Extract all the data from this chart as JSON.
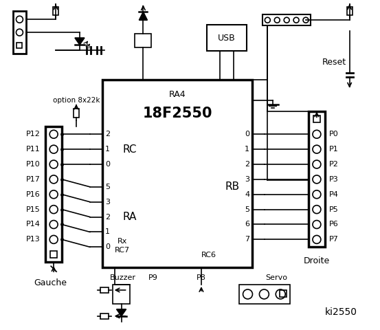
{
  "bg_color": "#ffffff",
  "title": "ki2550",
  "chip_label": "18F2550",
  "chip_sublabel": "RA4",
  "rc_label": "RC",
  "ra_label": "RA",
  "rb_label": "RB",
  "rc_pins_left": [
    "2",
    "1",
    "0"
  ],
  "ra_pins_left": [
    "5",
    "3",
    "2",
    "1",
    "0"
  ],
  "rb_pins_right": [
    "0",
    "1",
    "2",
    "3",
    "4",
    "5",
    "6",
    "7"
  ],
  "left_labels": [
    "P12",
    "P11",
    "P10",
    "P17",
    "P16",
    "P15",
    "P14",
    "P13"
  ],
  "right_labels": [
    "P0",
    "P1",
    "P2",
    "P3",
    "P4",
    "P5",
    "P6",
    "P7"
  ],
  "gauche_label": "Gauche",
  "buzzer_label": "Buzzer",
  "p9_label": "P9",
  "p8_label": "P8",
  "servo_label": "Servo",
  "option_label": "option 8x22k",
  "reset_label": "Reset",
  "droite_label": "Droite",
  "rx_label": "Rx",
  "rc7_label": "RC7",
  "rc6_label": "RC6",
  "usb_label": "USB"
}
